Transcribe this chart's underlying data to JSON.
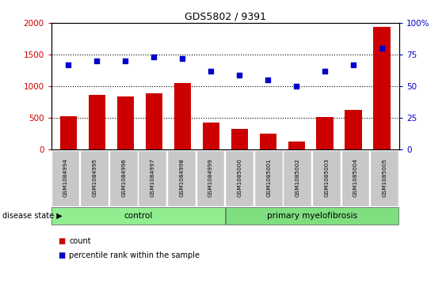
{
  "title": "GDS5802 / 9391",
  "samples": [
    "GSM1084994",
    "GSM1084995",
    "GSM1084996",
    "GSM1084997",
    "GSM1084998",
    "GSM1084999",
    "GSM1085000",
    "GSM1085001",
    "GSM1085002",
    "GSM1085003",
    "GSM1085004",
    "GSM1085005"
  ],
  "counts": [
    520,
    860,
    840,
    880,
    1050,
    420,
    320,
    250,
    120,
    510,
    620,
    1940
  ],
  "percentile_ranks": [
    67,
    70,
    70,
    73,
    72,
    62,
    59,
    55,
    50,
    62,
    67,
    80
  ],
  "groups": {
    "control": [
      0,
      1,
      2,
      3,
      4,
      5
    ],
    "primary myelofibrosis": [
      6,
      7,
      8,
      9,
      10,
      11
    ]
  },
  "bar_color": "#cc0000",
  "scatter_color": "#0000cc",
  "left_ylim": [
    0,
    2000
  ],
  "right_ylim": [
    0,
    100
  ],
  "left_yticks": [
    0,
    500,
    1000,
    1500,
    2000
  ],
  "right_yticks": [
    0,
    25,
    50,
    75,
    100
  ],
  "right_yticklabels": [
    "0",
    "25",
    "50",
    "75",
    "100%"
  ],
  "control_color": "#90ee90",
  "myelofibrosis_color": "#7fdf7f",
  "tick_bg_color": "#c8c8c8",
  "background_color": "#ffffff",
  "disease_state_label": "disease state",
  "control_label": "control",
  "myelofibrosis_label": "primary myelofibrosis",
  "count_label": "count",
  "percentile_label": "percentile rank within the sample"
}
